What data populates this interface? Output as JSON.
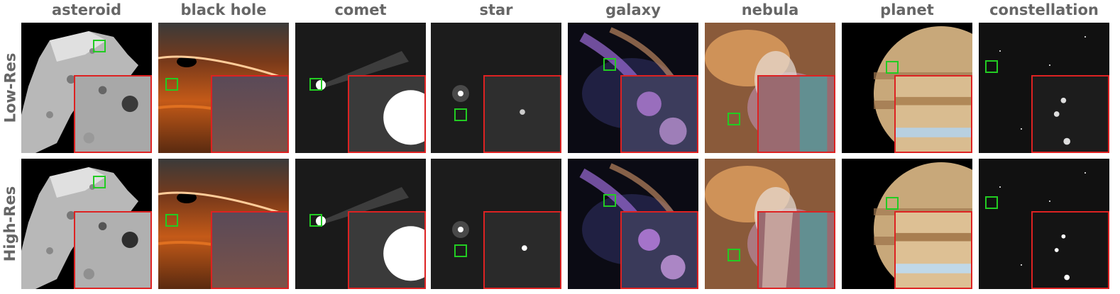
{
  "columns": [
    {
      "id": "asteroid",
      "label": "asteroid"
    },
    {
      "id": "black-hole",
      "label": "black hole"
    },
    {
      "id": "comet",
      "label": "comet"
    },
    {
      "id": "star",
      "label": "star"
    },
    {
      "id": "galaxy",
      "label": "galaxy"
    },
    {
      "id": "nebula",
      "label": "nebula"
    },
    {
      "id": "planet",
      "label": "planet"
    },
    {
      "id": "constellation",
      "label": "constellation"
    }
  ],
  "rows": [
    {
      "id": "low-res",
      "label": "Low-Res"
    },
    {
      "id": "high-res",
      "label": "High-Res"
    }
  ],
  "colors": {
    "label_text": "#666666",
    "marker_box": "#22cc22",
    "zoom_border": "#dd2222"
  }
}
